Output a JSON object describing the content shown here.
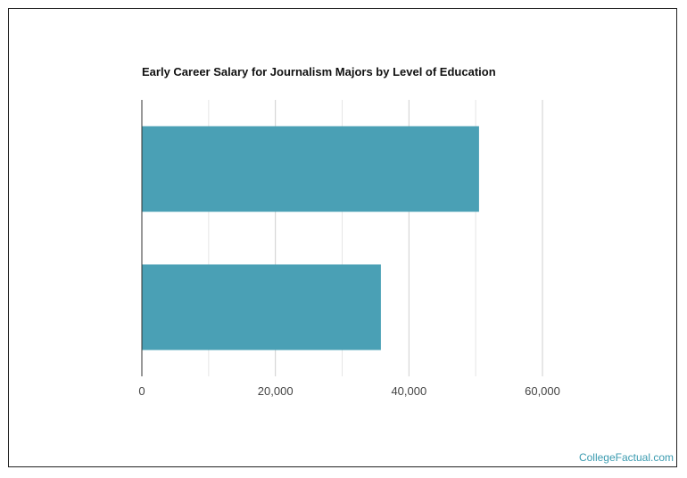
{
  "chart_data": {
    "type": "bar",
    "orientation": "horizontal",
    "title": "Early Career Salary for Journalism Majors by Level of Education",
    "categories": [
      "",
      ""
    ],
    "values": [
      50500,
      35800
    ],
    "xlim": [
      0,
      60000
    ],
    "x_ticks": [
      0,
      20000,
      40000,
      60000
    ],
    "x_tick_labels": [
      "0",
      "20,000",
      "40,000",
      "60,000"
    ],
    "grid": true,
    "bar_color": "#4aa0b5"
  },
  "footer": {
    "credit": "CollegeFactual.com"
  }
}
